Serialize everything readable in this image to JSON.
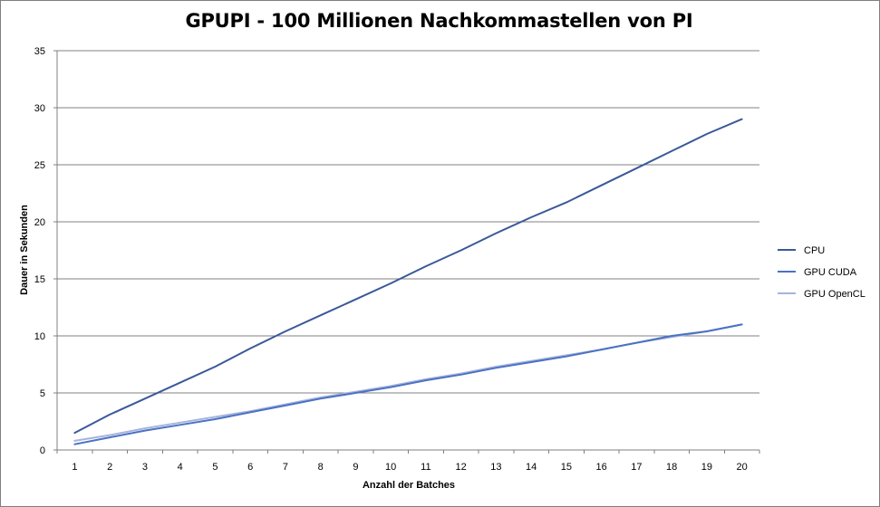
{
  "chart_data": {
    "type": "line",
    "title": "GPUPI - 100 Millionen Nachkommastellen von PI",
    "xlabel": "Anzahl  der Batches",
    "ylabel": "Dauer in Sekunden",
    "categories": [
      "1",
      "2",
      "3",
      "4",
      "5",
      "6",
      "7",
      "8",
      "9",
      "10",
      "11",
      "12",
      "13",
      "14",
      "15",
      "16",
      "17",
      "18",
      "19",
      "20"
    ],
    "ylim": [
      0,
      35
    ],
    "yticks": [
      "0",
      "5",
      "10",
      "15",
      "20",
      "25",
      "30",
      "35"
    ],
    "grid": true,
    "legend_position": "right",
    "series": [
      {
        "name": "CPU",
        "color": "#3b5998",
        "values": [
          1.5,
          3.1,
          4.5,
          5.9,
          7.3,
          8.9,
          10.4,
          11.8,
          13.2,
          14.6,
          16.1,
          17.5,
          19.0,
          20.4,
          21.7,
          23.2,
          24.7,
          26.2,
          27.7,
          29.0
        ]
      },
      {
        "name": "GPU CUDA",
        "color": "#4a72c4",
        "values": [
          0.5,
          1.1,
          1.7,
          2.2,
          2.7,
          3.3,
          3.9,
          4.5,
          5.0,
          5.5,
          6.1,
          6.6,
          7.2,
          7.7,
          8.2,
          8.8,
          9.4,
          10.0,
          10.4,
          11.0
        ]
      },
      {
        "name": "GPU OpenCL",
        "color": "#a6b3dc",
        "values": [
          0.8,
          1.3,
          1.9,
          2.4,
          2.9,
          3.4,
          4.0,
          4.6,
          5.1,
          5.6,
          6.2,
          6.7,
          7.3,
          7.8,
          8.3,
          8.8,
          9.4,
          9.9,
          10.4,
          11.0
        ]
      }
    ]
  }
}
